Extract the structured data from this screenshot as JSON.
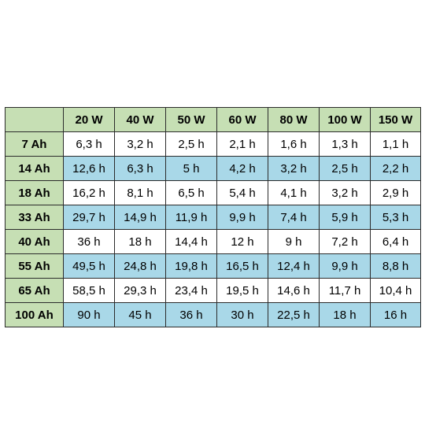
{
  "colors": {
    "header_green": "#c6dfb4",
    "row_blue": "#a9d8e8",
    "row_white": "#ffffff",
    "grid_line": "#2b2b2b"
  },
  "chart_data": {
    "type": "table",
    "columns": [
      "",
      "20 W",
      "40 W",
      "50 W",
      "60 W",
      "80 W",
      "100 W",
      "150 W"
    ],
    "rows": [
      {
        "label": "7 Ah",
        "values": [
          "6,3 h",
          "3,2 h",
          "2,5 h",
          "2,1 h",
          "1,6 h",
          "1,3 h",
          "1,1 h"
        ]
      },
      {
        "label": "14 Ah",
        "values": [
          "12,6 h",
          "6,3 h",
          "5 h",
          "4,2 h",
          "3,2 h",
          "2,5 h",
          "2,2 h"
        ]
      },
      {
        "label": "18 Ah",
        "values": [
          "16,2 h",
          "8,1 h",
          "6,5 h",
          "5,4 h",
          "4,1 h",
          "3,2 h",
          "2,9 h"
        ]
      },
      {
        "label": "33 Ah",
        "values": [
          "29,7 h",
          "14,9 h",
          "11,9 h",
          "9,9 h",
          "7,4 h",
          "5,9 h",
          "5,3 h"
        ]
      },
      {
        "label": "40 Ah",
        "values": [
          "36 h",
          "18 h",
          "14,4 h",
          "12 h",
          "9 h",
          "7,2 h",
          "6,4 h"
        ]
      },
      {
        "label": "55 Ah",
        "values": [
          "49,5 h",
          "24,8 h",
          "19,8 h",
          "16,5 h",
          "12,4 h",
          "9,9 h",
          "8,8 h"
        ]
      },
      {
        "label": "65 Ah",
        "values": [
          "58,5 h",
          "29,3 h",
          "23,4 h",
          "19,5 h",
          "14,6 h",
          "11,7 h",
          "10,4 h"
        ]
      },
      {
        "label": "100 Ah",
        "values": [
          "90 h",
          "45 h",
          "36 h",
          "30 h",
          "22,5 h",
          "18 h",
          "16 h"
        ]
      }
    ]
  }
}
